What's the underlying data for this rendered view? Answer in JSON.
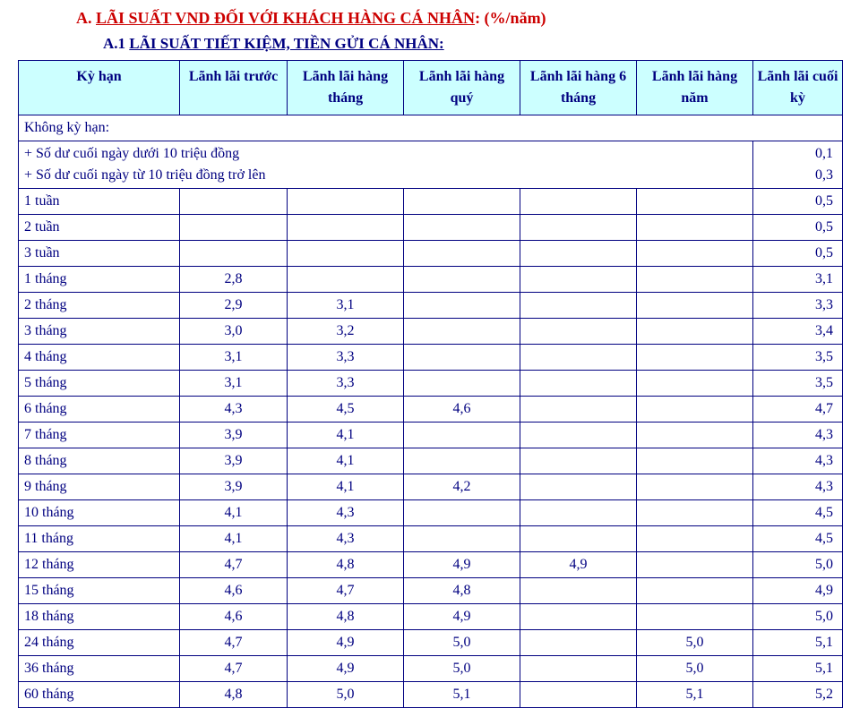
{
  "headings": {
    "a_label": "A.",
    "a_main": "LÃI SUẤT VND ĐỐI VỚI KHÁCH HÀNG CÁ NHÂN",
    "a_suffix": ": (%/năm)",
    "a1_label": "A.1",
    "a1_main": "LÃI SUẤT TIẾT KIỆM, TIỀN GỬI CÁ NHÂN:"
  },
  "table": {
    "type": "table",
    "header_bg": "#ccffff",
    "border_color": "#000080",
    "text_color": "#000080",
    "font_family": "Times New Roman",
    "columns": [
      "Kỳ hạn",
      "Lãnh lãi trước",
      "Lãnh lãi hàng tháng",
      "Lãnh lãi hàng quý",
      "Lãnh lãi hàng 6 tháng",
      "Lãnh lãi hàng năm",
      "Lãnh lãi cuối kỳ"
    ],
    "no_term_label": "Không kỳ hạn:",
    "no_term_notes": [
      {
        "text": "+ Số dư cuối ngày dưới 10 triệu đồng",
        "value": "0,1"
      },
      {
        "text": "+ Số dư cuối ngày từ 10 triệu đồng trở lên",
        "value": "0,3"
      }
    ],
    "rows": [
      {
        "term": "1 tuần",
        "v": [
          "",
          "",
          "",
          "",
          "",
          "0,5"
        ]
      },
      {
        "term": "2 tuần",
        "v": [
          "",
          "",
          "",
          "",
          "",
          "0,5"
        ]
      },
      {
        "term": "3 tuần",
        "v": [
          "",
          "",
          "",
          "",
          "",
          "0,5"
        ]
      },
      {
        "term": "1 tháng",
        "v": [
          "2,8",
          "",
          "",
          "",
          "",
          "3,1"
        ]
      },
      {
        "term": "2 tháng",
        "v": [
          "2,9",
          "3,1",
          "",
          "",
          "",
          "3,3"
        ]
      },
      {
        "term": "3 tháng",
        "v": [
          "3,0",
          "3,2",
          "",
          "",
          "",
          "3,4"
        ]
      },
      {
        "term": "4 tháng",
        "v": [
          "3,1",
          "3,3",
          "",
          "",
          "",
          "3,5"
        ]
      },
      {
        "term": "5 tháng",
        "v": [
          "3,1",
          "3,3",
          "",
          "",
          "",
          "3,5"
        ]
      },
      {
        "term": "6 tháng",
        "v": [
          "4,3",
          "4,5",
          "4,6",
          "",
          "",
          "4,7"
        ]
      },
      {
        "term": "7 tháng",
        "v": [
          "3,9",
          "4,1",
          "",
          "",
          "",
          "4,3"
        ]
      },
      {
        "term": "8 tháng",
        "v": [
          "3,9",
          "4,1",
          "",
          "",
          "",
          "4,3"
        ]
      },
      {
        "term": "9 tháng",
        "v": [
          "3,9",
          "4,1",
          "4,2",
          "",
          "",
          "4,3"
        ]
      },
      {
        "term": "10 tháng",
        "v": [
          "4,1",
          "4,3",
          "",
          "",
          "",
          "4,5"
        ]
      },
      {
        "term": "11 tháng",
        "v": [
          "4,1",
          "4,3",
          "",
          "",
          "",
          "4,5"
        ]
      },
      {
        "term": "12 tháng",
        "v": [
          "4,7",
          "4,8",
          "4,9",
          "4,9",
          "",
          "5,0"
        ]
      },
      {
        "term": "15 tháng",
        "v": [
          "4,6",
          "4,7",
          "4,8",
          "",
          "",
          "4,9"
        ]
      },
      {
        "term": "18 tháng",
        "v": [
          "4,6",
          "4,8",
          "4,9",
          "",
          "",
          "5,0"
        ]
      },
      {
        "term": "24 tháng",
        "v": [
          "4,7",
          "4,9",
          "5,0",
          "",
          "5,0",
          "5,1"
        ]
      },
      {
        "term": "36 tháng",
        "v": [
          "4,7",
          "4,9",
          "5,0",
          "",
          "5,0",
          "5,1"
        ]
      },
      {
        "term": "60 tháng",
        "v": [
          "4,8",
          "5,0",
          "5,1",
          "",
          "5,1",
          "5,2"
        ]
      }
    ]
  }
}
